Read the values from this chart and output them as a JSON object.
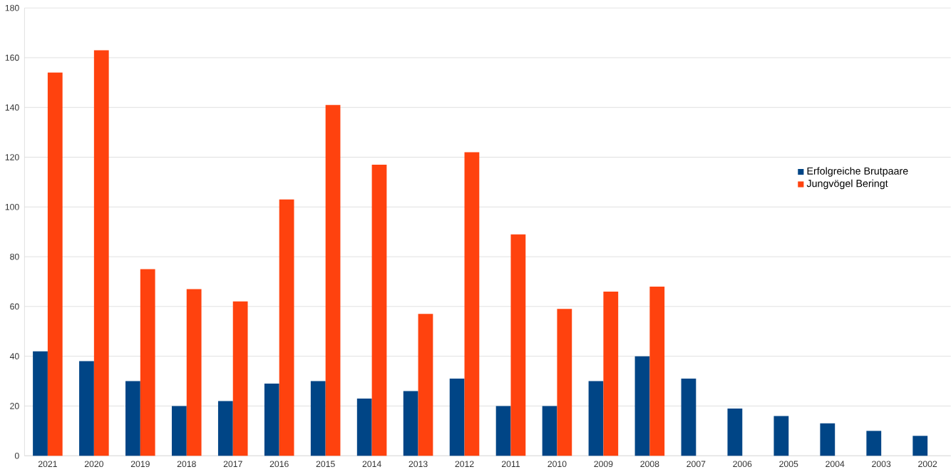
{
  "chart_data": {
    "type": "bar",
    "categories": [
      "2021",
      "2020",
      "2019",
      "2018",
      "2017",
      "2016",
      "2015",
      "2014",
      "2013",
      "2012",
      "2011",
      "2010",
      "2009",
      "2008",
      "2007",
      "2006",
      "2005",
      "2004",
      "2003",
      "2002"
    ],
    "series": [
      {
        "name": "Erfolgreiche Brutpaare",
        "color": "#004586",
        "values": [
          42,
          38,
          30,
          20,
          22,
          29,
          30,
          23,
          26,
          31,
          20,
          20,
          30,
          40,
          31,
          19,
          16,
          13,
          10,
          8
        ]
      },
      {
        "name": "Jungvögel Beringt",
        "color": "#ff420e",
        "values": [
          154,
          163,
          75,
          67,
          62,
          103,
          141,
          117,
          57,
          122,
          89,
          59,
          66,
          68,
          null,
          null,
          null,
          null,
          null,
          null
        ]
      }
    ],
    "ylim": [
      0,
      180
    ],
    "yticks": [
      0,
      20,
      40,
      60,
      80,
      100,
      120,
      140,
      160,
      180
    ],
    "grid": "y",
    "legend": "right"
  }
}
